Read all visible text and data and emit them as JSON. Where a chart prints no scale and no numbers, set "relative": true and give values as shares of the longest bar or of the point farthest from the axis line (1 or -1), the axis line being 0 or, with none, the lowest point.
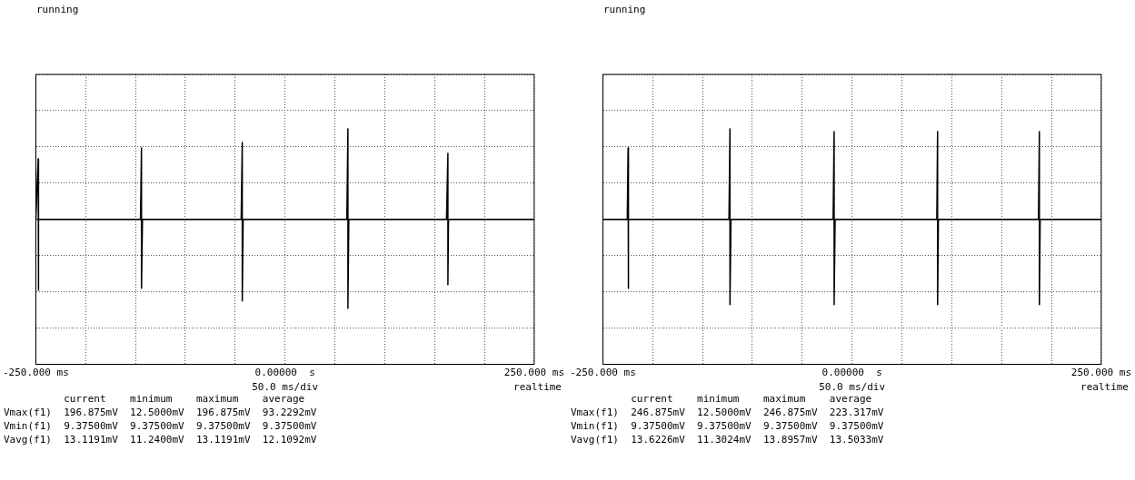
{
  "chart_data": [
    {
      "type": "line",
      "title": "running",
      "relative": true,
      "xlabel": "50.0 ms/div",
      "xlim": [
        -250,
        250
      ],
      "xticks": [
        {
          "value": -250,
          "label": "-250.000 ms"
        },
        {
          "value": -200,
          "label": null
        },
        {
          "value": -150,
          "label": null
        },
        {
          "value": -100,
          "label": null
        },
        {
          "value": -50,
          "label": null
        },
        {
          "value": 0,
          "label": "0.00000  s"
        },
        {
          "value": 50,
          "label": null
        },
        {
          "value": 100,
          "label": null
        },
        {
          "value": 150,
          "label": null
        },
        {
          "value": 200,
          "label": null
        },
        {
          "value": 250,
          "label": "250.000 ms"
        }
      ],
      "grid": true,
      "legend": false,
      "marker": "none",
      "line_style": "solid",
      "series": [
        {
          "color": "#000000",
          "x": [
            -250,
            -247.6,
            -247.6,
            -247,
            -145,
            -144,
            -144,
            -143,
            -44,
            -42.9,
            -42.9,
            -42,
            62,
            63.1,
            63.1,
            64,
            162,
            163.4,
            163.4,
            164,
            250
          ],
          "values": [
            0,
            0.67,
            -0.78,
            0,
            0,
            0.79,
            -0.76,
            0,
            0,
            0.85,
            -0.9,
            0,
            0,
            1,
            -0.98,
            0,
            0,
            0.73,
            -0.72,
            0,
            0
          ]
        }
      ],
      "annotations": [
        "realtime",
        "          current    minimum    maximum    average",
        "Vmax(f1)  196.875mV  12.5000mV  196.875mV  93.2292mV",
        "Vmin(f1)  9.37500mV  9.37500mV  9.37500mV  9.37500mV",
        "Vavg(f1)  13.1191mV  11.2400mV  13.1191mV  12.1092mV"
      ]
    },
    {
      "type": "line",
      "title": "running",
      "relative": true,
      "xlabel": "50.0 ms/div",
      "xlim": [
        -250,
        250
      ],
      "xticks": [
        {
          "value": -250,
          "label": "-250.000 ms"
        },
        {
          "value": -200,
          "label": null
        },
        {
          "value": -150,
          "label": null
        },
        {
          "value": -100,
          "label": null
        },
        {
          "value": -50,
          "label": null
        },
        {
          "value": 0,
          "label": "0.00000  s"
        },
        {
          "value": 50,
          "label": null
        },
        {
          "value": 100,
          "label": null
        },
        {
          "value": 150,
          "label": null
        },
        {
          "value": 200,
          "label": null
        },
        {
          "value": 250,
          "label": "250.000 ms"
        }
      ],
      "grid": true,
      "legend": false,
      "marker": "none",
      "line_style": "solid",
      "series": [
        {
          "color": "#000000",
          "x": [
            -250,
            -225.5,
            -224.7,
            -224.7,
            -224,
            -123.5,
            -122.5,
            -122.5,
            -121.5,
            -19,
            -18,
            -18,
            -17,
            85,
            85.8,
            85.8,
            86.6,
            187,
            187.9,
            187.9,
            188.7,
            250
          ],
          "values": [
            0,
            0,
            0.79,
            -0.76,
            0,
            0,
            1,
            -0.94,
            0,
            0,
            0.97,
            -0.94,
            0,
            0,
            0.97,
            -0.94,
            0,
            0,
            0.97,
            -0.94,
            0,
            0
          ]
        }
      ],
      "annotations": [
        "realtime",
        "          current    minimum    maximum    average",
        "Vmax(f1)  246.875mV  12.5000mV  246.875mV  223.317mV",
        "Vmin(f1)  9.37500mV  9.37500mV  9.37500mV  9.37500mV",
        "Vavg(f1)  13.6226mV  11.3024mV  13.8957mV  13.5033mV"
      ]
    }
  ]
}
